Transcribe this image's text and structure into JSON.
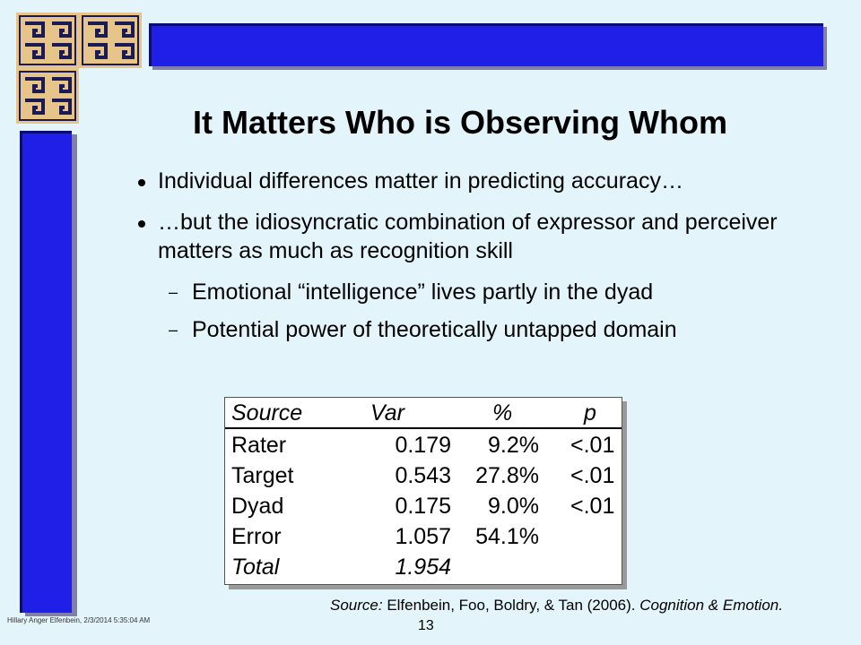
{
  "slide": {
    "title": "It Matters Who is Observing Whom",
    "bullets": [
      {
        "text": "Individual differences matter in predicting accuracy…"
      },
      {
        "text": "…but the idiosyncratic combination of expressor and perceiver matters as much as recognition skill"
      }
    ],
    "sub_bullets": [
      {
        "dash": "–",
        "text": "Emotional “intelligence” lives partly in the dyad"
      },
      {
        "dash": "–",
        "text": "Potential power of theoretically untapped domain"
      }
    ],
    "table": {
      "headers": [
        "Source",
        "Var",
        "%",
        "p"
      ],
      "rows": [
        [
          "Rater",
          "0.179",
          "9.2%",
          "<.01"
        ],
        [
          "Target",
          "0.543",
          "27.8%",
          "<.01"
        ],
        [
          "Dyad",
          "0.175",
          "9.0%",
          "<.01"
        ],
        [
          "Error",
          "1.057",
          "54.1%",
          ""
        ],
        [
          "Total",
          "1.954",
          "",
          ""
        ]
      ]
    },
    "source": {
      "label": "Source:",
      "citation": " Elfenbein, Foo, Boldry, & Tan (2006). ",
      "journal": "Cognition & Emotion."
    },
    "footer": "Hillary Anger Elfenbein,  2/3/2014  5:35:04  AM",
    "page_number": "13"
  },
  "colors": {
    "background": "#e3f5fb",
    "accent_blue": "#1f1fe8",
    "logo_gold": "#e6c48a",
    "logo_navy": "#1a1a55"
  },
  "icons": {
    "logo": "greek-key-logo-icon"
  }
}
